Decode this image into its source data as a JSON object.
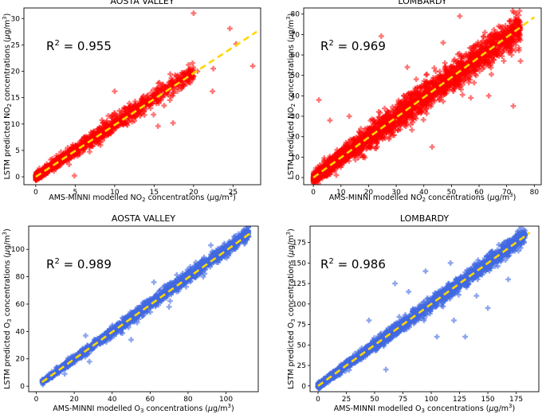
{
  "figure": {
    "panels": [
      "no2-aosta",
      "no2-lombardy",
      "o3-aosta",
      "o3-lombardy"
    ]
  },
  "chart_data": [
    {
      "id": "no2-aosta",
      "type": "scatter",
      "title": "AOSTA VALLEY",
      "annotation": "0.955",
      "annotation_prefix": "R",
      "annotation_sup": "2",
      "annotation_eq": " = ",
      "xlabel": [
        "AMS-MINNI modelled NO",
        "2",
        " concentrations (",
        "μ",
        "g/m",
        "3",
        ")"
      ],
      "ylabel": [
        "LSTM predicted NO",
        "2",
        " concentrations (",
        "μ",
        "g/m",
        "3",
        ")"
      ],
      "xlim": [
        -1.5,
        28.5
      ],
      "ylim": [
        -1.5,
        32
      ],
      "xticks": [
        0,
        5,
        10,
        15,
        20,
        25
      ],
      "yticks": [
        0,
        5,
        10,
        15,
        20,
        25,
        30
      ],
      "marker": "plus",
      "color": "#ff0000",
      "fit_line": {
        "x": [
          0,
          28
        ],
        "y": [
          0,
          27.5
        ],
        "color": "#ffd700"
      },
      "cloud": {
        "max": 20,
        "slope": 1.0,
        "spread": 0.9,
        "n": 1300
      },
      "outliers": [
        [
          20.0,
          31.0
        ],
        [
          24.6,
          28.1
        ],
        [
          27.5,
          21.0
        ],
        [
          22.4,
          16.2
        ],
        [
          14.9,
          16.5
        ],
        [
          10.0,
          16.2
        ],
        [
          25.4,
          25.2
        ],
        [
          17.4,
          10.2
        ],
        [
          15.5,
          9.6
        ],
        [
          20.5,
          20.0
        ],
        [
          4.9,
          0.2
        ],
        [
          22.5,
          20.5
        ]
      ]
    },
    {
      "id": "no2-lombardy",
      "type": "scatter",
      "title": "LOMBARDY",
      "annotation": "0.969",
      "annotation_prefix": "R",
      "annotation_sup": "2",
      "annotation_eq": " = ",
      "xlabel": [
        "AMS-MINNI modelled NO",
        "2",
        " concentrations (",
        "μ",
        "g/m",
        "3",
        ")"
      ],
      "ylabel": [
        "LSTM predicted NO",
        "2",
        " concentrations (",
        "μ",
        "g/m",
        "3",
        ")"
      ],
      "xlim": [
        -3.5,
        82.5
      ],
      "ylim": [
        -3.5,
        83
      ],
      "xticks": [
        0,
        10,
        20,
        30,
        40,
        50,
        60,
        70,
        80
      ],
      "yticks": [
        0,
        10,
        20,
        30,
        40,
        50,
        60,
        70,
        80
      ],
      "marker": "plus",
      "color": "#ff0000",
      "fit_line": {
        "x": [
          0,
          80
        ],
        "y": [
          0,
          78.5
        ],
        "color": "#ffd700"
      },
      "cloud": {
        "max": 75,
        "slope": 0.98,
        "spread": 4.0,
        "n": 2600
      },
      "outliers": [
        [
          53.0,
          79.0
        ],
        [
          24.6,
          69.2
        ],
        [
          43.0,
          15.0
        ],
        [
          72.4,
          35.0
        ],
        [
          63.5,
          40.0
        ],
        [
          2.0,
          38.0
        ],
        [
          57.0,
          39.0
        ],
        [
          75.0,
          57.0
        ],
        [
          47.0,
          66.0
        ],
        [
          34.0,
          54.0
        ],
        [
          13.0,
          30.0
        ],
        [
          6.0,
          28.0
        ]
      ]
    },
    {
      "id": "o3-aosta",
      "type": "scatter",
      "title": "AOSTA VALLEY",
      "annotation": "0.989",
      "annotation_prefix": "R",
      "annotation_sup": "2",
      "annotation_eq": " = ",
      "xlabel": [
        "AMS-MINNI modelled O",
        "3",
        " concentrations (",
        "μ",
        "g/m",
        "3",
        ")"
      ],
      "ylabel": [
        "LSTM predicted O",
        "3",
        " concentrations (",
        "μ",
        "g/m",
        "3",
        ")"
      ],
      "xlim": [
        -4,
        117
      ],
      "ylim": [
        -4,
        117
      ],
      "xticks": [
        0,
        20,
        40,
        60,
        80,
        100
      ],
      "yticks": [
        0,
        20,
        40,
        60,
        80,
        100
      ],
      "marker": "plus",
      "color": "#4169e1",
      "fit_line": {
        "x": [
          3,
          113
        ],
        "y": [
          3,
          112
        ],
        "color": "#ffd700"
      },
      "cloud": {
        "max": 112,
        "min": 3,
        "slope": 1.0,
        "spread": 2.3,
        "n": 1800
      },
      "outliers": [
        [
          15.0,
          9.0
        ],
        [
          28.0,
          18.0
        ],
        [
          50.0,
          34.0
        ],
        [
          70.0,
          58.0
        ],
        [
          62.0,
          76.0
        ],
        [
          92.0,
          103.0
        ],
        [
          26.0,
          37.0
        ],
        [
          88.0,
          80.0
        ]
      ]
    },
    {
      "id": "o3-lombardy",
      "type": "scatter",
      "title": "LOMBARDY",
      "annotation": "0.986",
      "annotation_prefix": "R",
      "annotation_sup": "2",
      "annotation_eq": " = ",
      "xlabel": [
        "AMS-MINNI modelled O",
        "3",
        " concentrations (",
        "μ",
        "g/m",
        "3",
        ")"
      ],
      "ylabel": [
        "LSTM predicted O",
        "3",
        " concentrations (",
        "μ",
        "g/m",
        "3",
        ")"
      ],
      "xlim": [
        -7,
        195
      ],
      "ylim": [
        -7,
        195
      ],
      "xticks": [
        0,
        25,
        50,
        75,
        100,
        125,
        150,
        175
      ],
      "yticks": [
        0,
        25,
        50,
        75,
        100,
        125,
        150,
        175
      ],
      "marker": "plus",
      "color": "#4169e1",
      "fit_line": {
        "x": [
          0,
          187
        ],
        "y": [
          0,
          187
        ],
        "color": "#ffd700"
      },
      "cloud": {
        "max": 183,
        "slope": 1.0,
        "spread": 4.5,
        "n": 2300
      },
      "outliers": [
        [
          68.0,
          125.0
        ],
        [
          117.0,
          150.0
        ],
        [
          80.0,
          115.0
        ],
        [
          150.0,
          95.0
        ],
        [
          130.0,
          60.0
        ],
        [
          168.0,
          130.0
        ],
        [
          60.0,
          20.0
        ],
        [
          105.0,
          60.0
        ],
        [
          95.0,
          140.0
        ],
        [
          45.0,
          80.0
        ],
        [
          140.0,
          110.0
        ],
        [
          120.0,
          80.0
        ]
      ]
    }
  ]
}
